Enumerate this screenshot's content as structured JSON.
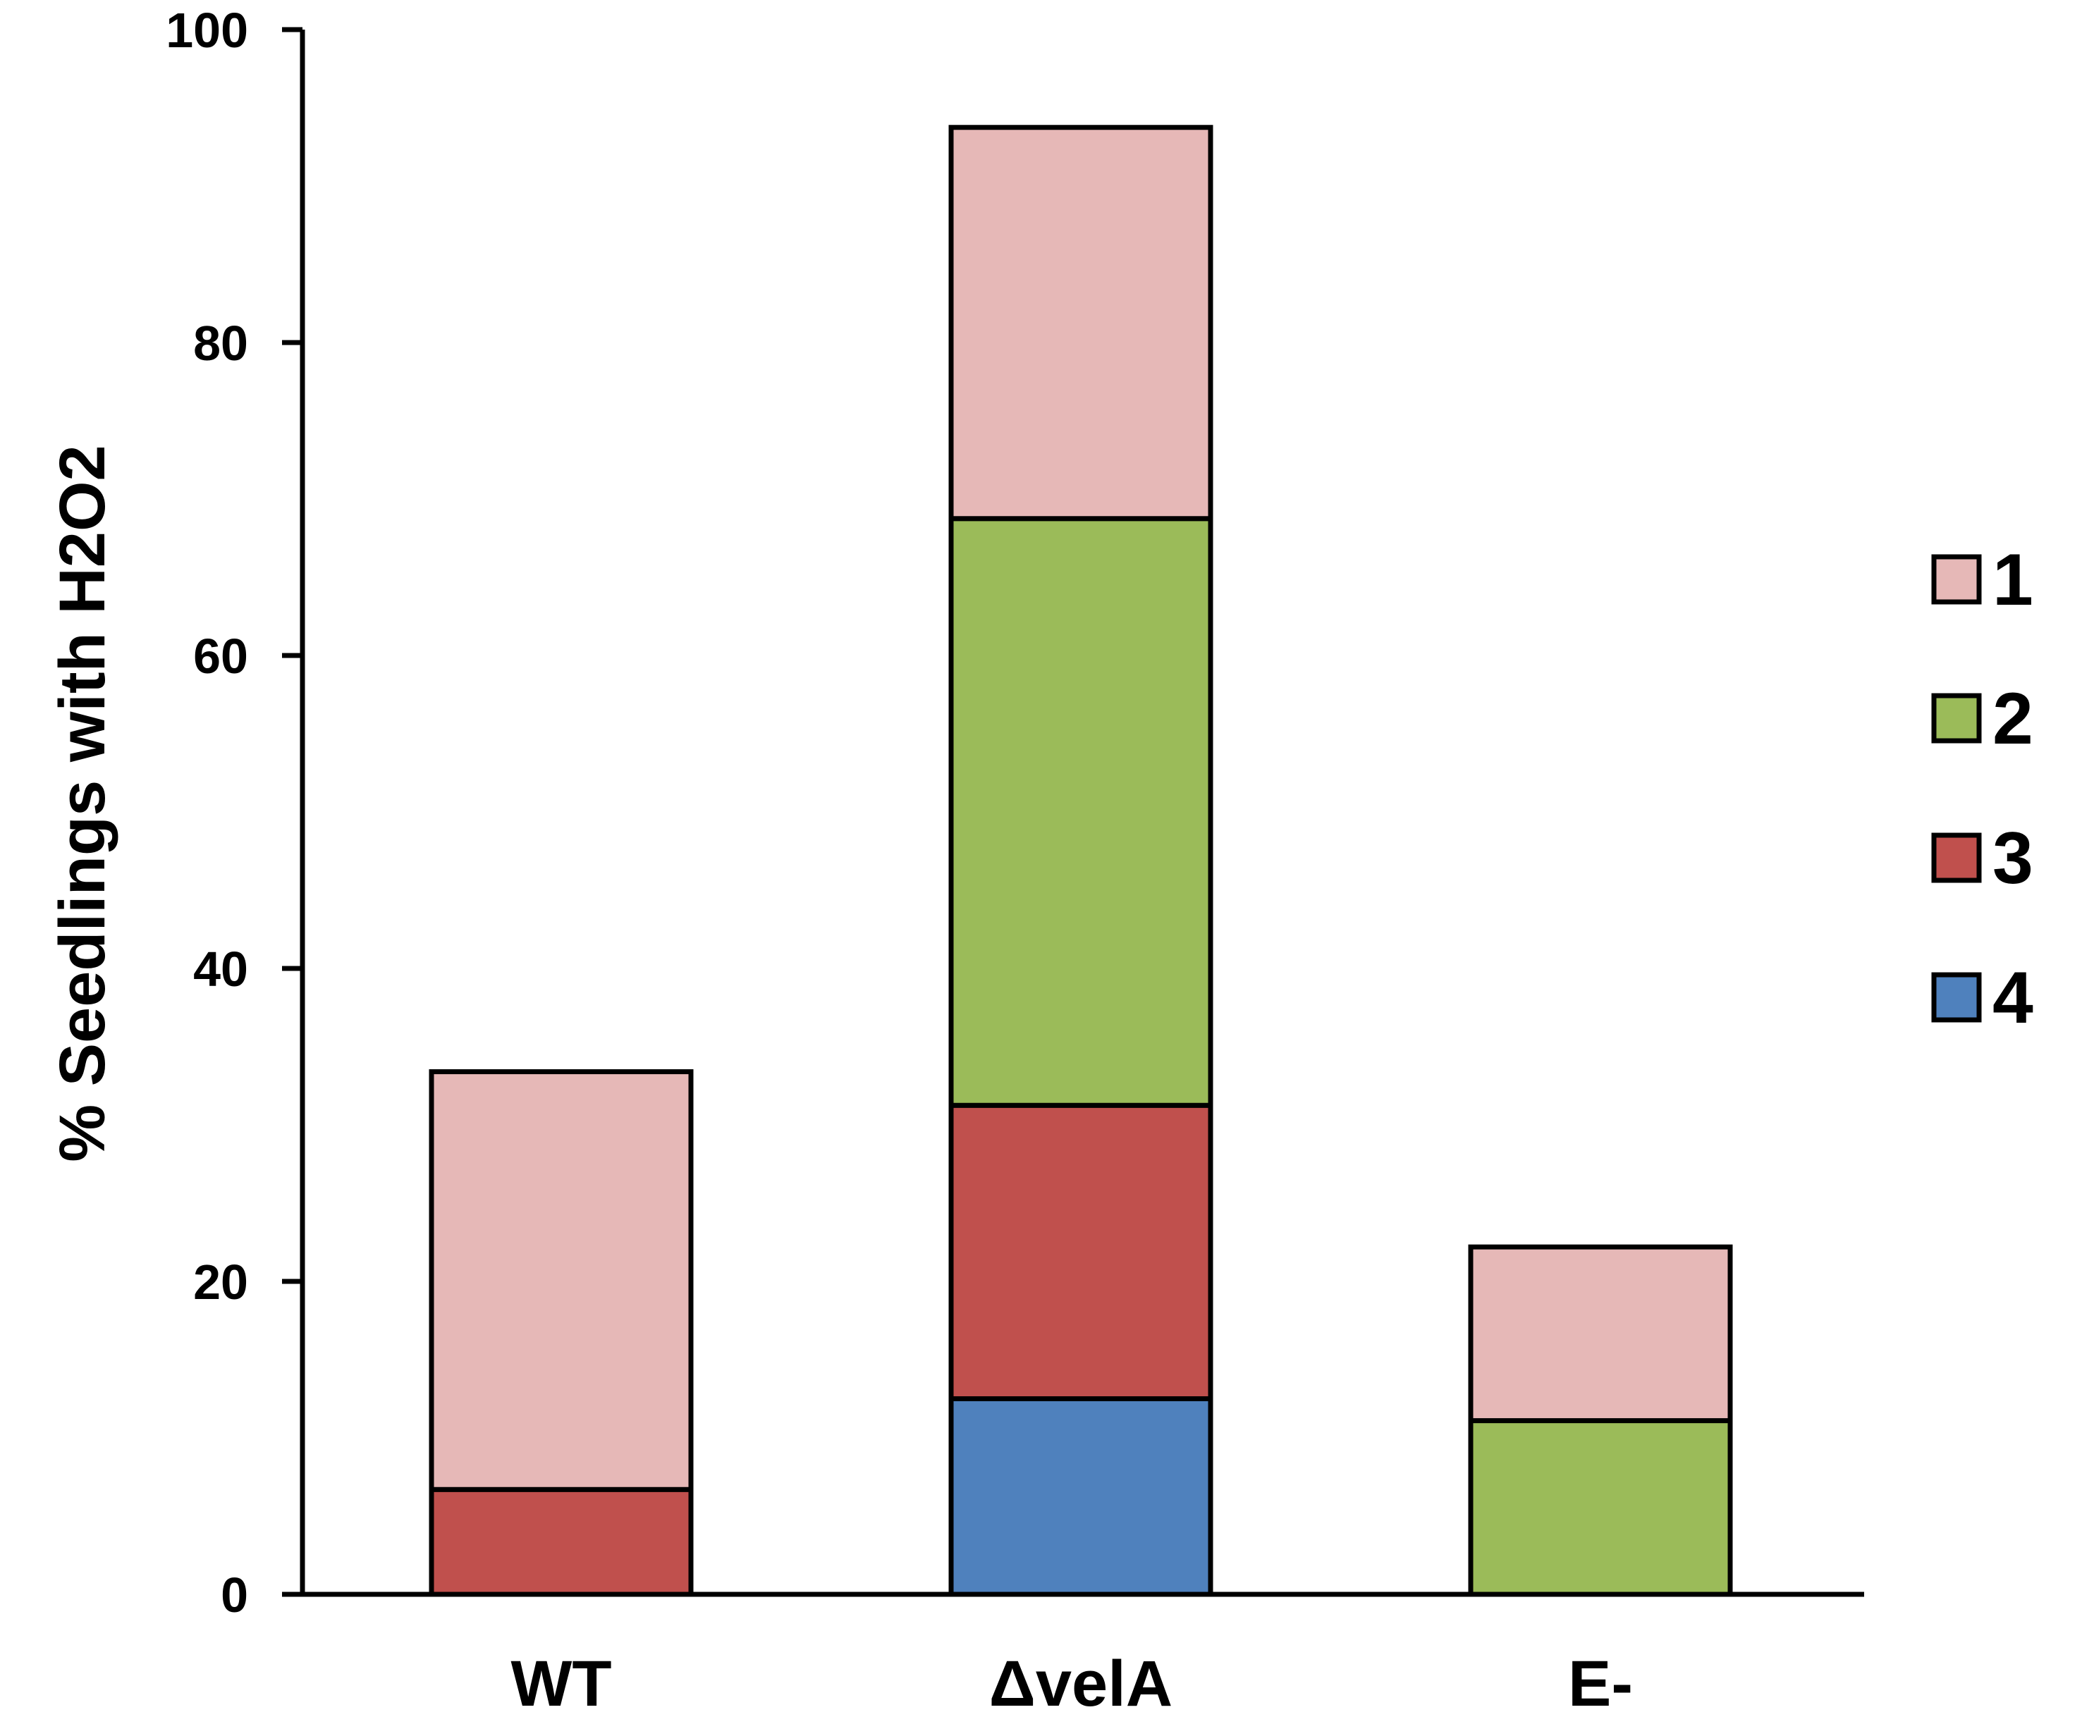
{
  "chart_data": {
    "type": "bar",
    "stacked": true,
    "title": "",
    "xlabel": "",
    "ylabel": "% Seedlings with H2O2",
    "ylim": [
      0,
      100
    ],
    "yticks": [
      0,
      20,
      40,
      60,
      80,
      100
    ],
    "categories": [
      "WT",
      "ΔvelA",
      "E-"
    ],
    "stack_order": [
      "4",
      "3",
      "2",
      "1"
    ],
    "series": [
      {
        "name": "1",
        "color": "#e6b8b7",
        "values": [
          26.7,
          25.0,
          11.1
        ]
      },
      {
        "name": "2",
        "color": "#9bbb59",
        "values": [
          0,
          37.5,
          11.1
        ]
      },
      {
        "name": "3",
        "color": "#c0504d",
        "values": [
          6.7,
          18.75,
          0
        ]
      },
      {
        "name": "4",
        "color": "#4f81bd",
        "values": [
          0,
          12.5,
          0
        ]
      }
    ],
    "totals": [
      33.3,
      93.75,
      22.2
    ],
    "legend": {
      "position": "right",
      "order": [
        "1",
        "2",
        "3",
        "4"
      ]
    },
    "grid": false
  }
}
